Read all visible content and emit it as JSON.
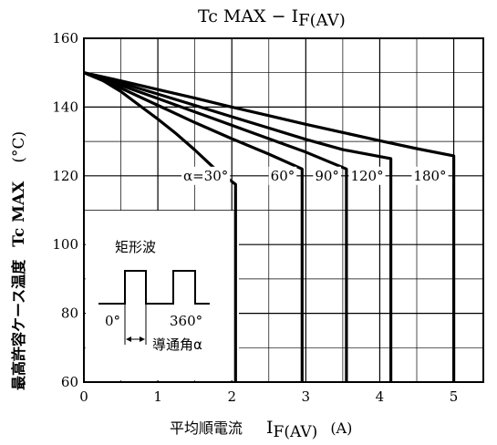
{
  "chart_data": {
    "type": "line",
    "title": "Tc MAX − IF(AV)",
    "title_parts": {
      "main": "Tc MAX − I",
      "sub": "F(AV)"
    },
    "xlabel": "平均順電流 IF(AV) (A)",
    "xlabel_parts": {
      "jp": "平均順電流",
      "main": "I",
      "sub": "F(AV)",
      "unit": "(A)"
    },
    "ylabel": "最高許容ケース温度 Tc MAX (°C)",
    "ylabel_parts": {
      "jp": "最高許容ケース温度",
      "main": "Tc MAX",
      "unit": "(°C)"
    },
    "xlim": [
      0,
      5.4
    ],
    "ylim": [
      60,
      160
    ],
    "x_ticks": [
      0,
      1,
      2,
      3,
      4,
      5
    ],
    "y_ticks": [
      60,
      80,
      100,
      120,
      140,
      160
    ],
    "grid": true,
    "series": [
      {
        "name": "α=30°",
        "points": [
          [
            0,
            150
          ],
          [
            0.25,
            147.8
          ],
          [
            0.5,
            144.5
          ],
          [
            0.75,
            140.5
          ],
          [
            1.0,
            136.5
          ],
          [
            1.25,
            132.2
          ],
          [
            1.5,
            127.5
          ],
          [
            1.75,
            122.5
          ],
          [
            2.05,
            117.5
          ],
          [
            2.05,
            60
          ]
        ]
      },
      {
        "name": "60°",
        "points": [
          [
            0,
            150
          ],
          [
            0.5,
            145.5
          ],
          [
            1.0,
            140.5
          ],
          [
            1.5,
            135.5
          ],
          [
            2.0,
            130.8
          ],
          [
            2.5,
            126.3
          ],
          [
            2.95,
            122
          ],
          [
            2.95,
            60
          ]
        ]
      },
      {
        "name": "90°",
        "points": [
          [
            0,
            150
          ],
          [
            0.5,
            146.3
          ],
          [
            1.0,
            142.5
          ],
          [
            1.5,
            138.6
          ],
          [
            2.0,
            134.7
          ],
          [
            2.5,
            130.8
          ],
          [
            3.0,
            126.9
          ],
          [
            3.55,
            122
          ],
          [
            3.55,
            60
          ]
        ]
      },
      {
        "name": "120°",
        "points": [
          [
            0,
            150
          ],
          [
            0.5,
            147
          ],
          [
            1.0,
            143.8
          ],
          [
            1.5,
            140.5
          ],
          [
            2.0,
            137.2
          ],
          [
            2.5,
            133.9
          ],
          [
            3.0,
            130.6
          ],
          [
            3.5,
            127.6
          ],
          [
            4.15,
            125
          ],
          [
            4.15,
            60
          ]
        ]
      },
      {
        "name": "180°",
        "points": [
          [
            0,
            150
          ],
          [
            0.5,
            147.6
          ],
          [
            1.0,
            145.1
          ],
          [
            1.5,
            142.6
          ],
          [
            2.0,
            140
          ],
          [
            2.5,
            137.5
          ],
          [
            3.0,
            135
          ],
          [
            3.5,
            132.6
          ],
          [
            4.0,
            130.2
          ],
          [
            4.5,
            127.9
          ],
          [
            5.0,
            125.8
          ],
          [
            5.0,
            60
          ]
        ]
      }
    ],
    "inset": {
      "title": "矩形波",
      "start_label": "0°",
      "end_label": "360°",
      "angle_label": "導通角α"
    }
  }
}
